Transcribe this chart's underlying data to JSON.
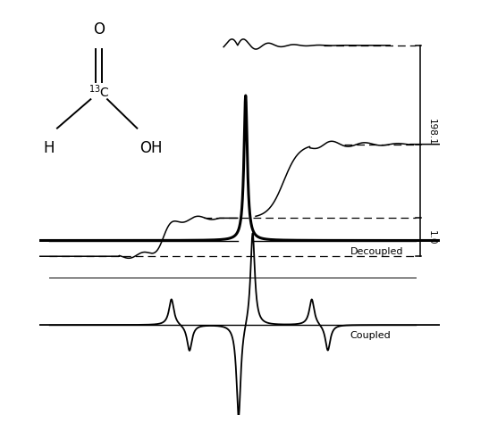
{
  "background_color": "#ffffff",
  "fig_width": 5.47,
  "fig_height": 4.74,
  "dpi": 100,
  "label_198": "198.1",
  "label_10": "1.0",
  "label_decoupled": "Decoupled",
  "label_coupled": "Coupled"
}
